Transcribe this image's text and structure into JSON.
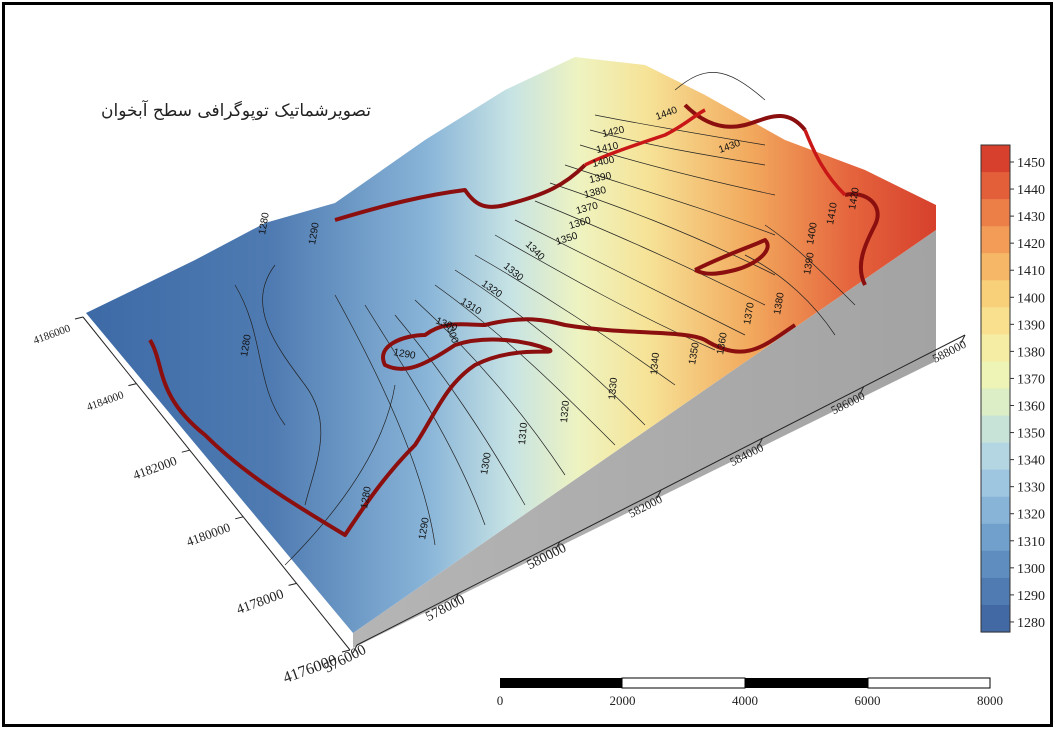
{
  "title": "تصویرشماتیک توپوگرافی سطح آبخوان",
  "colorbar": {
    "labels": [
      "1450",
      "1440",
      "1430",
      "1420",
      "1410",
      "1400",
      "1390",
      "1380",
      "1370",
      "1360",
      "1350",
      "1340",
      "1330",
      "1320",
      "1310",
      "1300",
      "1290",
      "1280"
    ],
    "colors": [
      "#d6402c",
      "#e35f3a",
      "#ec7e48",
      "#f29c57",
      "#f6b866",
      "#f8d07a",
      "#f8e08f",
      "#f6eda4",
      "#eef3b6",
      "#dbeec6",
      "#c7e3d8",
      "#b3d6e2",
      "#9ec6e0",
      "#88b4d8",
      "#72a0cc",
      "#5f8dbf",
      "#4f7bb2",
      "#4269a4"
    ]
  },
  "axes": {
    "x_ticks": [
      "576000",
      "578000",
      "580000",
      "582000",
      "584000",
      "586000",
      "588000"
    ],
    "y_ticks": [
      "4176000",
      "4178000",
      "4180000",
      "4182000",
      "4184000",
      "4186000"
    ]
  },
  "scale_bar": {
    "labels": [
      "0",
      "2000",
      "4000",
      "6000",
      "8000"
    ]
  },
  "contour_labels": [
    {
      "t": "1440"
    },
    {
      "t": "1430"
    },
    {
      "t": "1420"
    },
    {
      "t": "1410"
    },
    {
      "t": "1400"
    },
    {
      "t": "1390"
    },
    {
      "t": "1380"
    },
    {
      "t": "1370"
    },
    {
      "t": "1360"
    },
    {
      "t": "1350"
    },
    {
      "t": "1340"
    },
    {
      "t": "1330"
    },
    {
      "t": "1320"
    },
    {
      "t": "1310"
    },
    {
      "t": "1300"
    },
    {
      "t": "1290"
    },
    {
      "t": "1280"
    },
    {
      "t": "1280"
    },
    {
      "t": "1290"
    },
    {
      "t": "1300"
    },
    {
      "t": "1310"
    },
    {
      "t": "1320"
    },
    {
      "t": "1330"
    },
    {
      "t": "1340"
    },
    {
      "t": "1350"
    },
    {
      "t": "1360"
    },
    {
      "t": "1370"
    },
    {
      "t": "1380"
    },
    {
      "t": "1390"
    },
    {
      "t": "1400"
    },
    {
      "t": "1410"
    },
    {
      "t": "1420"
    },
    {
      "t": "1280"
    },
    {
      "t": "1290"
    },
    {
      "t": "1300"
    }
  ]
}
